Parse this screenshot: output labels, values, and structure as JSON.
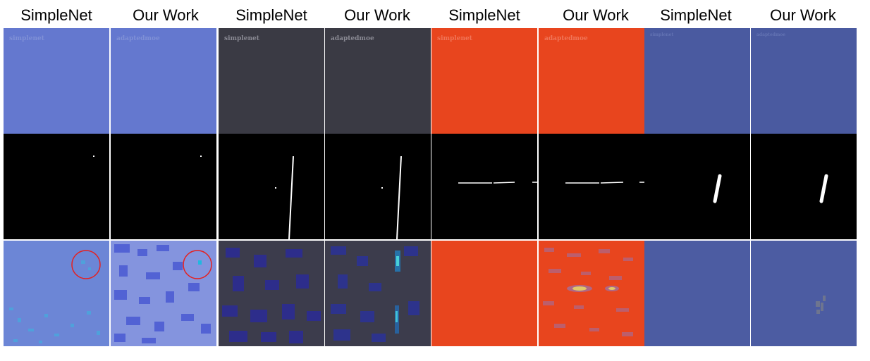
{
  "headers": [
    "SimpleNet",
    "Our Work",
    "SimpleNet",
    "Our Work",
    "SimpleNet",
    "Our Work",
    "SimpleNet",
    "Our Work"
  ],
  "watermarks": [
    "simplenet",
    "adaptedmoe",
    "simplenet",
    "adaptedmoe",
    "simplenet",
    "adaptedmoe",
    "simplenet",
    "adaptedmoe"
  ],
  "colors": {
    "blue_fabric": "#6478cf",
    "dark_fabric": "#3a3a44",
    "orange_fabric": "#e8451e",
    "navy_fabric": "#4a5aa0",
    "mask_bg": "#000000",
    "mask_fg": "#ffffff",
    "highlight_circle": "#e52020"
  }
}
